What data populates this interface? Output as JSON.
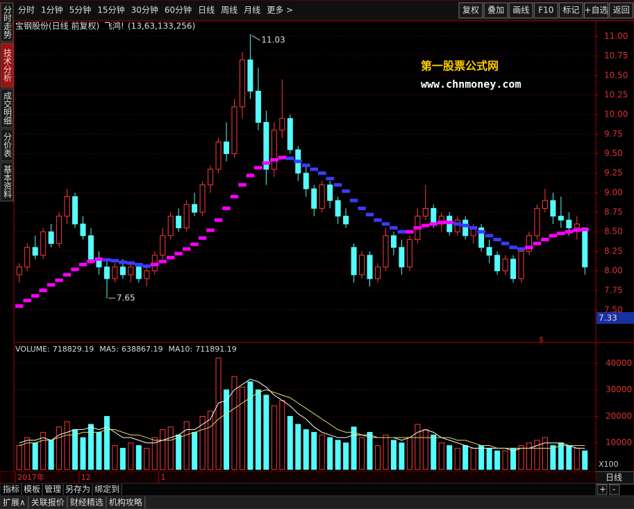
{
  "toolbar": {
    "periods": [
      "分时",
      "1分钟",
      "5分钟",
      "15分钟",
      "30分钟",
      "60分钟",
      "日线",
      "周线",
      "月线",
      "更多 >"
    ],
    "active_period": 6,
    "buttons": [
      "复权",
      "叠加",
      "画线",
      "F10",
      "标记",
      "+自选",
      "返回"
    ]
  },
  "sidebar": {
    "tabs": [
      "分时走势",
      "技术分析",
      "成交明细",
      "分价表",
      "基本资料"
    ],
    "active": 1
  },
  "chart_data": [
    {
      "type": "candlestick",
      "title": "宝钢股份(日线 前复权)",
      "indicator": "飞鸿!",
      "params": "(13,63,133,256)",
      "open": [
        7.95,
        8.05,
        8.3,
        8.2,
        8.5,
        8.35,
        8.7,
        8.95,
        8.6,
        8.45,
        8.15,
        8.05,
        7.9,
        8.05,
        7.95,
        8.05,
        7.9,
        8.0,
        8.2,
        8.45,
        8.7,
        8.55,
        8.85,
        8.75,
        9.1,
        9.3,
        9.65,
        9.5,
        10.1,
        10.7,
        10.3,
        9.9,
        9.3,
        9.8,
        9.95,
        9.55,
        9.25,
        9.05,
        8.8,
        9.1,
        8.9,
        8.7,
        8.3,
        7.95,
        8.2,
        7.9,
        8.05,
        8.45,
        8.3,
        8.05,
        8.4,
        8.7,
        8.8,
        8.6,
        8.7,
        8.5,
        8.65,
        8.45,
        8.55,
        8.3,
        8.2,
        8.0,
        8.15,
        7.9,
        8.25,
        8.45,
        8.8,
        8.9,
        8.7,
        8.65,
        8.55,
        8.55
      ],
      "high": [
        8.1,
        8.35,
        8.45,
        8.55,
        8.6,
        8.75,
        9.05,
        9.0,
        8.7,
        8.55,
        8.25,
        8.15,
        8.1,
        8.15,
        8.1,
        8.1,
        8.05,
        8.25,
        8.55,
        8.75,
        8.8,
        8.9,
        9.0,
        9.15,
        9.35,
        9.7,
        9.9,
        10.2,
        10.8,
        11.03,
        10.6,
        10.05,
        9.9,
        10.45,
        10.0,
        9.6,
        9.35,
        9.1,
        9.15,
        9.15,
        8.95,
        8.8,
        8.35,
        8.25,
        8.25,
        8.1,
        8.55,
        8.5,
        8.4,
        8.45,
        8.8,
        9.1,
        8.85,
        8.75,
        8.75,
        8.7,
        8.7,
        8.6,
        8.6,
        8.4,
        8.25,
        8.2,
        8.2,
        8.3,
        8.5,
        8.85,
        9.05,
        9.0,
        8.95,
        8.75,
        8.7,
        8.55
      ],
      "low": [
        7.85,
        8.0,
        8.15,
        8.15,
        8.3,
        8.3,
        8.6,
        8.55,
        8.4,
        8.1,
        7.95,
        7.65,
        7.85,
        7.9,
        7.85,
        7.85,
        7.8,
        7.95,
        8.15,
        8.4,
        8.5,
        8.5,
        8.7,
        8.7,
        9.0,
        9.25,
        9.4,
        9.45,
        9.95,
        10.2,
        9.8,
        9.1,
        9.2,
        9.7,
        9.5,
        9.15,
        8.95,
        8.7,
        8.75,
        8.8,
        8.6,
        8.55,
        7.85,
        7.9,
        7.8,
        7.85,
        8.0,
        8.2,
        7.95,
        8.0,
        8.35,
        8.65,
        8.55,
        8.5,
        8.45,
        8.45,
        8.4,
        8.35,
        8.25,
        8.1,
        7.95,
        7.95,
        7.85,
        7.85,
        8.2,
        8.4,
        8.75,
        8.6,
        8.55,
        8.45,
        8.4,
        7.95
      ],
      "close": [
        8.05,
        8.3,
        8.2,
        8.5,
        8.35,
        8.7,
        8.95,
        8.6,
        8.45,
        8.15,
        8.05,
        7.9,
        8.05,
        7.95,
        8.05,
        7.9,
        8.0,
        8.2,
        8.45,
        8.7,
        8.55,
        8.85,
        8.75,
        9.1,
        9.3,
        9.65,
        9.5,
        10.1,
        10.7,
        10.3,
        9.9,
        9.3,
        9.8,
        9.95,
        9.55,
        9.25,
        9.05,
        8.8,
        9.1,
        8.9,
        8.7,
        8.6,
        7.95,
        8.2,
        7.9,
        8.05,
        8.45,
        8.3,
        8.05,
        8.4,
        8.7,
        8.8,
        8.6,
        8.7,
        8.5,
        8.65,
        8.45,
        8.55,
        8.3,
        8.2,
        8.0,
        8.15,
        7.9,
        8.25,
        8.45,
        8.8,
        8.9,
        8.7,
        8.65,
        8.55,
        8.6,
        8.05
      ],
      "up_color": "#ff3c3c",
      "down_color": "#54fcfc",
      "line": {
        "values": [
          7.55,
          7.62,
          7.68,
          7.75,
          7.82,
          7.88,
          7.95,
          8.02,
          8.08,
          8.12,
          8.15,
          8.14,
          8.13,
          8.11,
          8.1,
          8.08,
          8.06,
          8.08,
          8.12,
          8.17,
          8.22,
          8.28,
          8.34,
          8.42,
          8.52,
          8.65,
          8.8,
          8.95,
          9.1,
          9.22,
          9.32,
          9.38,
          9.42,
          9.45,
          9.44,
          9.4,
          9.35,
          9.3,
          9.25,
          9.18,
          9.1,
          9.02,
          8.9,
          8.8,
          8.72,
          8.65,
          8.6,
          8.55,
          8.5,
          8.5,
          8.55,
          8.58,
          8.6,
          8.62,
          8.62,
          8.6,
          8.58,
          8.55,
          8.5,
          8.45,
          8.4,
          8.35,
          8.3,
          8.28,
          8.3,
          8.35,
          8.4,
          8.45,
          8.48,
          8.5,
          8.52,
          8.53
        ],
        "up_color": "#ff00ff",
        "down_color": "#3c3cff"
      },
      "ylim": [
        7.1,
        11.2
      ],
      "yticks": [
        {
          "value": 7.5,
          "label": "7.50"
        },
        {
          "value": 7.75,
          "label": "7.75"
        },
        {
          "value": 8,
          "label": "8.00"
        },
        {
          "value": 8.25,
          "label": "8.25"
        },
        {
          "value": 8.5,
          "label": "8.50"
        },
        {
          "value": 8.75,
          "label": "8.75"
        },
        {
          "value": 9,
          "label": "9.00"
        },
        {
          "value": 9.25,
          "label": "9.25"
        },
        {
          "value": 9.5,
          "label": "9.50"
        },
        {
          "value": 9.75,
          "label": "9.75"
        },
        {
          "value": 10,
          "label": "10.00"
        },
        {
          "value": 10.25,
          "label": "10.25"
        },
        {
          "value": 10.5,
          "label": "10.50"
        },
        {
          "value": 10.75,
          "label": "10.75"
        },
        {
          "value": 11,
          "label": "11.00"
        }
      ],
      "grid": true,
      "high_label": {
        "index": 29,
        "value": 11.03
      },
      "low_label": {
        "index": 11,
        "value": 7.65
      },
      "last_price": 7.33,
      "marker": "$",
      "x_labels": [
        {
          "index": 0,
          "label": "2017年"
        },
        {
          "index": 8,
          "label": "12"
        },
        {
          "index": 18,
          "label": "1"
        }
      ],
      "watermark": [
        "第一股票公式网",
        "www.chnmoney.com"
      ]
    },
    {
      "type": "bar",
      "header": [
        {
          "name": "VOLUME:",
          "value": 718829.19
        },
        {
          "name": "MA5:",
          "value": 638867.19
        },
        {
          "name": "MA10:",
          "value": 711891.19
        }
      ],
      "values": [
        9000,
        12000,
        10000,
        14000,
        11000,
        16000,
        18000,
        15000,
        12000,
        17000,
        14000,
        20000,
        9000,
        8000,
        10000,
        9000,
        8000,
        12000,
        15000,
        16000,
        13000,
        18000,
        14000,
        20000,
        22000,
        42000,
        30000,
        35000,
        31000,
        33000,
        30000,
        28000,
        24000,
        26000,
        20000,
        17000,
        15000,
        14000,
        13000,
        12000,
        11000,
        10000,
        16000,
        12000,
        14000,
        9000,
        13000,
        11000,
        10000,
        12000,
        17000,
        15000,
        13000,
        10000,
        9000,
        8000,
        9000,
        8000,
        9000,
        8000,
        7000,
        7000,
        8000,
        9000,
        10000,
        11000,
        12000,
        9000,
        10000,
        9000,
        8000,
        7000
      ],
      "series": [
        {
          "color": "#ffffff",
          "values": [
            10000,
            11000,
            11000,
            12000,
            11000,
            13000,
            14000,
            15000,
            15000,
            16000,
            15000,
            16000,
            14000,
            12000,
            12000,
            11000,
            10000,
            10000,
            11000,
            12000,
            13000,
            15000,
            15000,
            17000,
            19000,
            25000,
            26000,
            30000,
            32000,
            34000,
            33000,
            31000,
            28000,
            26000,
            24000,
            21000,
            19000,
            16000,
            14000,
            13000,
            12000,
            12000,
            13000,
            13000,
            13000,
            12000,
            12000,
            12000,
            11000,
            12000,
            14000,
            15000,
            14000,
            12000,
            11000,
            10000,
            9000,
            8000,
            8000,
            8000,
            8000,
            8000,
            7000,
            8000,
            8000,
            9000,
            10000,
            10000,
            10000,
            9000,
            8000,
            8000
          ]
        },
        {
          "color": "#e0e070",
          "values": [
            9000,
            10000,
            10000,
            11000,
            11000,
            12000,
            13000,
            13000,
            14000,
            14000,
            14000,
            15000,
            15000,
            14000,
            13000,
            13000,
            12000,
            11000,
            11000,
            11000,
            12000,
            13000,
            14000,
            15000,
            16000,
            19000,
            21000,
            23000,
            25000,
            27000,
            29000,
            30000,
            29000,
            28000,
            27000,
            25000,
            23000,
            21000,
            19000,
            17000,
            15000,
            14000,
            14000,
            13000,
            12000,
            12000,
            12000,
            12000,
            12000,
            12000,
            12000,
            12000,
            12000,
            12000,
            12000,
            11000,
            11000,
            10000,
            9000,
            9000,
            8000,
            8000,
            8000,
            8000,
            8000,
            8000,
            8000,
            8000,
            9000,
            9000,
            9000,
            9000
          ]
        }
      ],
      "ylim": [
        0,
        47000
      ],
      "yticks": [
        10000,
        20000,
        30000,
        40000
      ],
      "grid": true,
      "unit": "X100"
    }
  ],
  "bottom": {
    "tabs1": [
      "指标",
      "模板",
      "管理",
      "另存为",
      "绑定到"
    ],
    "active": 2,
    "tabs2": [
      "扩展∧",
      "关联报价",
      "财经精选",
      "机构攻略"
    ],
    "period": "日线",
    "zoom": [
      "+",
      "-"
    ]
  }
}
